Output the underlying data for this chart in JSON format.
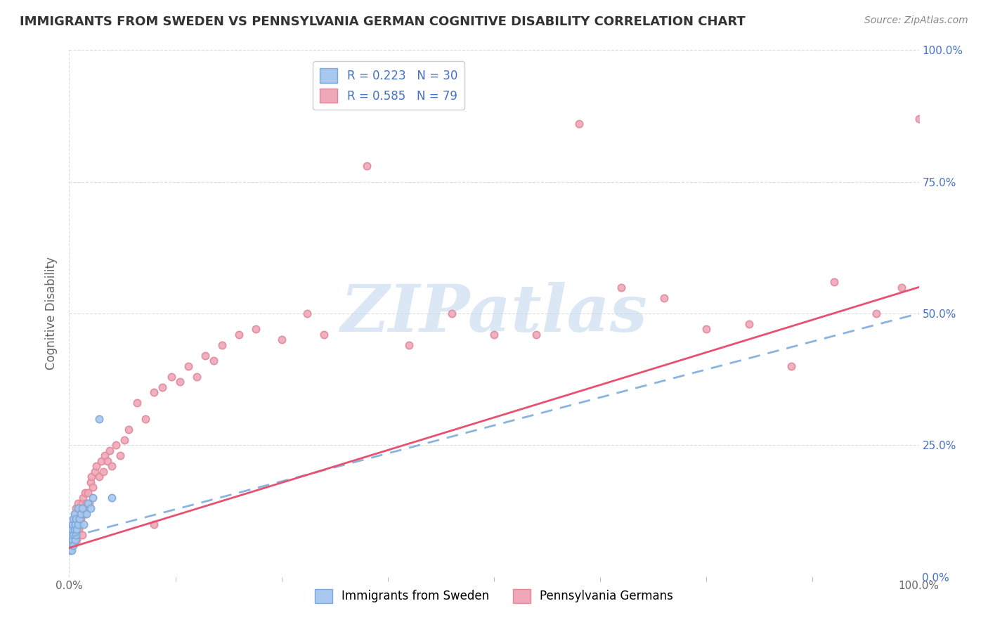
{
  "title": "IMMIGRANTS FROM SWEDEN VS PENNSYLVANIA GERMAN COGNITIVE DISABILITY CORRELATION CHART",
  "source_text": "Source: ZipAtlas.com",
  "ylabel": "Cognitive Disability",
  "xlim": [
    0.0,
    1.0
  ],
  "ylim": [
    0.0,
    1.0
  ],
  "grid_color": "#dddddd",
  "background_color": "#ffffff",
  "watermark_text": "ZIPatlas",
  "series1": {
    "label": "Immigrants from Sweden",
    "R": 0.223,
    "N": 30,
    "marker_color": "#a8c8f0",
    "line_color": "#8ab4e0",
    "x": [
      0.001,
      0.001,
      0.002,
      0.002,
      0.003,
      0.003,
      0.004,
      0.004,
      0.005,
      0.005,
      0.005,
      0.006,
      0.006,
      0.007,
      0.007,
      0.008,
      0.008,
      0.009,
      0.01,
      0.01,
      0.012,
      0.014,
      0.015,
      0.017,
      0.02,
      0.022,
      0.025,
      0.028,
      0.035,
      0.05
    ],
    "y": [
      0.05,
      0.07,
      0.06,
      0.08,
      0.05,
      0.09,
      0.07,
      0.1,
      0.06,
      0.08,
      0.11,
      0.09,
      0.12,
      0.07,
      0.1,
      0.08,
      0.11,
      0.09,
      0.1,
      0.13,
      0.11,
      0.12,
      0.13,
      0.1,
      0.12,
      0.14,
      0.13,
      0.15,
      0.3,
      0.15
    ],
    "line_x0": 0.0,
    "line_x1": 1.0,
    "line_y0": 0.075,
    "line_y1": 0.5
  },
  "series2": {
    "label": "Pennsylvania Germans",
    "R": 0.585,
    "N": 79,
    "marker_color": "#f0a8b8",
    "line_color": "#e85070",
    "x": [
      0.001,
      0.002,
      0.003,
      0.004,
      0.004,
      0.005,
      0.005,
      0.006,
      0.006,
      0.007,
      0.007,
      0.008,
      0.008,
      0.009,
      0.009,
      0.01,
      0.01,
      0.011,
      0.012,
      0.012,
      0.013,
      0.014,
      0.015,
      0.015,
      0.016,
      0.017,
      0.018,
      0.019,
      0.02,
      0.022,
      0.024,
      0.025,
      0.026,
      0.028,
      0.03,
      0.032,
      0.035,
      0.038,
      0.04,
      0.042,
      0.045,
      0.048,
      0.05,
      0.055,
      0.06,
      0.065,
      0.07,
      0.08,
      0.09,
      0.1,
      0.11,
      0.12,
      0.13,
      0.14,
      0.15,
      0.16,
      0.17,
      0.18,
      0.2,
      0.22,
      0.25,
      0.28,
      0.3,
      0.35,
      0.4,
      0.45,
      0.5,
      0.55,
      0.6,
      0.65,
      0.7,
      0.75,
      0.8,
      0.85,
      0.9,
      0.95,
      0.98,
      1.0,
      0.1
    ],
    "y": [
      0.06,
      0.07,
      0.08,
      0.09,
      0.06,
      0.1,
      0.08,
      0.11,
      0.07,
      0.09,
      0.12,
      0.08,
      0.13,
      0.1,
      0.07,
      0.11,
      0.14,
      0.09,
      0.13,
      0.1,
      0.12,
      0.11,
      0.14,
      0.08,
      0.15,
      0.13,
      0.12,
      0.16,
      0.14,
      0.16,
      0.14,
      0.18,
      0.19,
      0.17,
      0.2,
      0.21,
      0.19,
      0.22,
      0.2,
      0.23,
      0.22,
      0.24,
      0.21,
      0.25,
      0.23,
      0.26,
      0.28,
      0.33,
      0.3,
      0.35,
      0.36,
      0.38,
      0.37,
      0.4,
      0.38,
      0.42,
      0.41,
      0.44,
      0.46,
      0.47,
      0.45,
      0.5,
      0.46,
      0.78,
      0.44,
      0.5,
      0.46,
      0.46,
      0.86,
      0.55,
      0.53,
      0.47,
      0.48,
      0.4,
      0.56,
      0.5,
      0.55,
      0.87,
      0.1
    ],
    "line_x0": 0.0,
    "line_x1": 1.0,
    "line_y0": 0.055,
    "line_y1": 0.55
  },
  "title_color": "#333333",
  "title_fontsize": 13,
  "axis_label_color": "#666666",
  "tick_color": "#666666",
  "right_tick_color": "#4472c4",
  "legend_fontsize": 12,
  "source_fontsize": 10,
  "source_color": "#888888",
  "marker_size": 55,
  "marker_edge_width": 1.2,
  "marker_edge_color_1": "#7aa8d8",
  "marker_edge_color_2": "#e08898"
}
